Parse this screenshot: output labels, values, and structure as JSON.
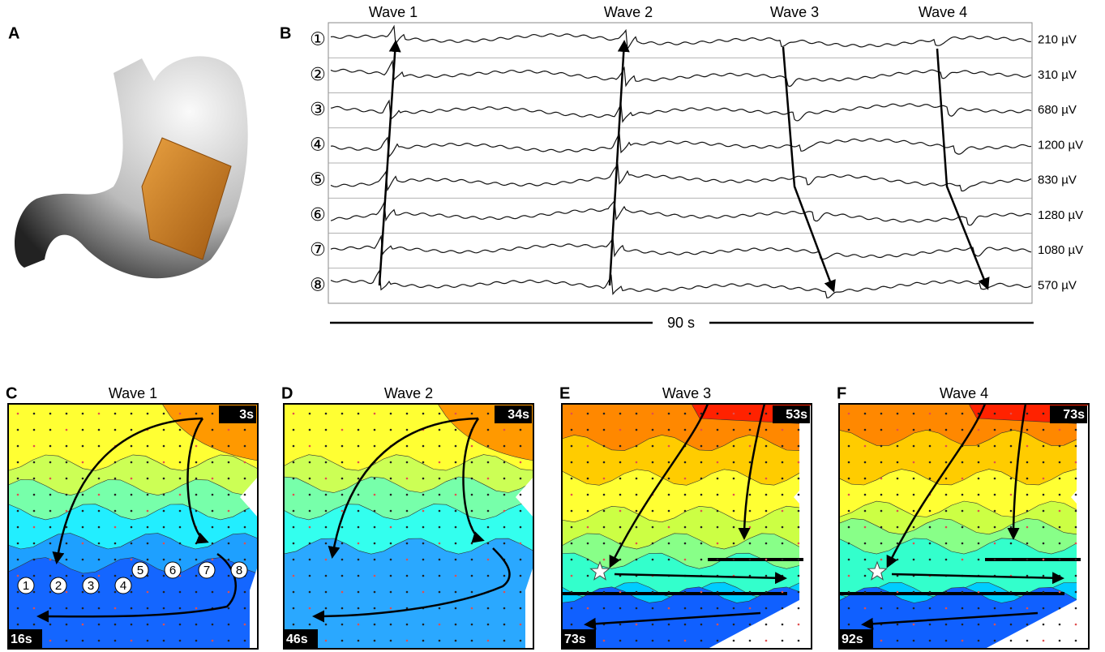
{
  "panel_a": {
    "letter": "A"
  },
  "panel_b": {
    "letter": "B",
    "waves": [
      "Wave 1",
      "Wave 2",
      "Wave 3",
      "Wave 4"
    ],
    "channels": [
      {
        "number": "①",
        "amplitude": "210 µV"
      },
      {
        "number": "②",
        "amplitude": "310 µV"
      },
      {
        "number": "③",
        "amplitude": "680 µV"
      },
      {
        "number": "④",
        "amplitude": "1200 µV"
      },
      {
        "number": "⑤",
        "amplitude": "830 µV"
      },
      {
        "number": "⑥",
        "amplitude": "1280 µV"
      },
      {
        "number": "⑦",
        "amplitude": "1080 µV"
      },
      {
        "number": "⑧",
        "amplitude": "570 µV"
      }
    ],
    "duration": "90 s"
  },
  "maps": [
    {
      "letter": "C",
      "title": "Wave 1",
      "start": "3s",
      "end": "16s"
    },
    {
      "letter": "D",
      "title": "Wave 2",
      "start": "34s",
      "end": "46s"
    },
    {
      "letter": "E",
      "title": "Wave 3",
      "start": "53s",
      "end": "73s"
    },
    {
      "letter": "F",
      "title": "Wave 4",
      "start": "73s",
      "end": "92s"
    }
  ],
  "electrodes": [
    "1",
    "2",
    "3",
    "4",
    "5",
    "6",
    "7",
    "8"
  ]
}
